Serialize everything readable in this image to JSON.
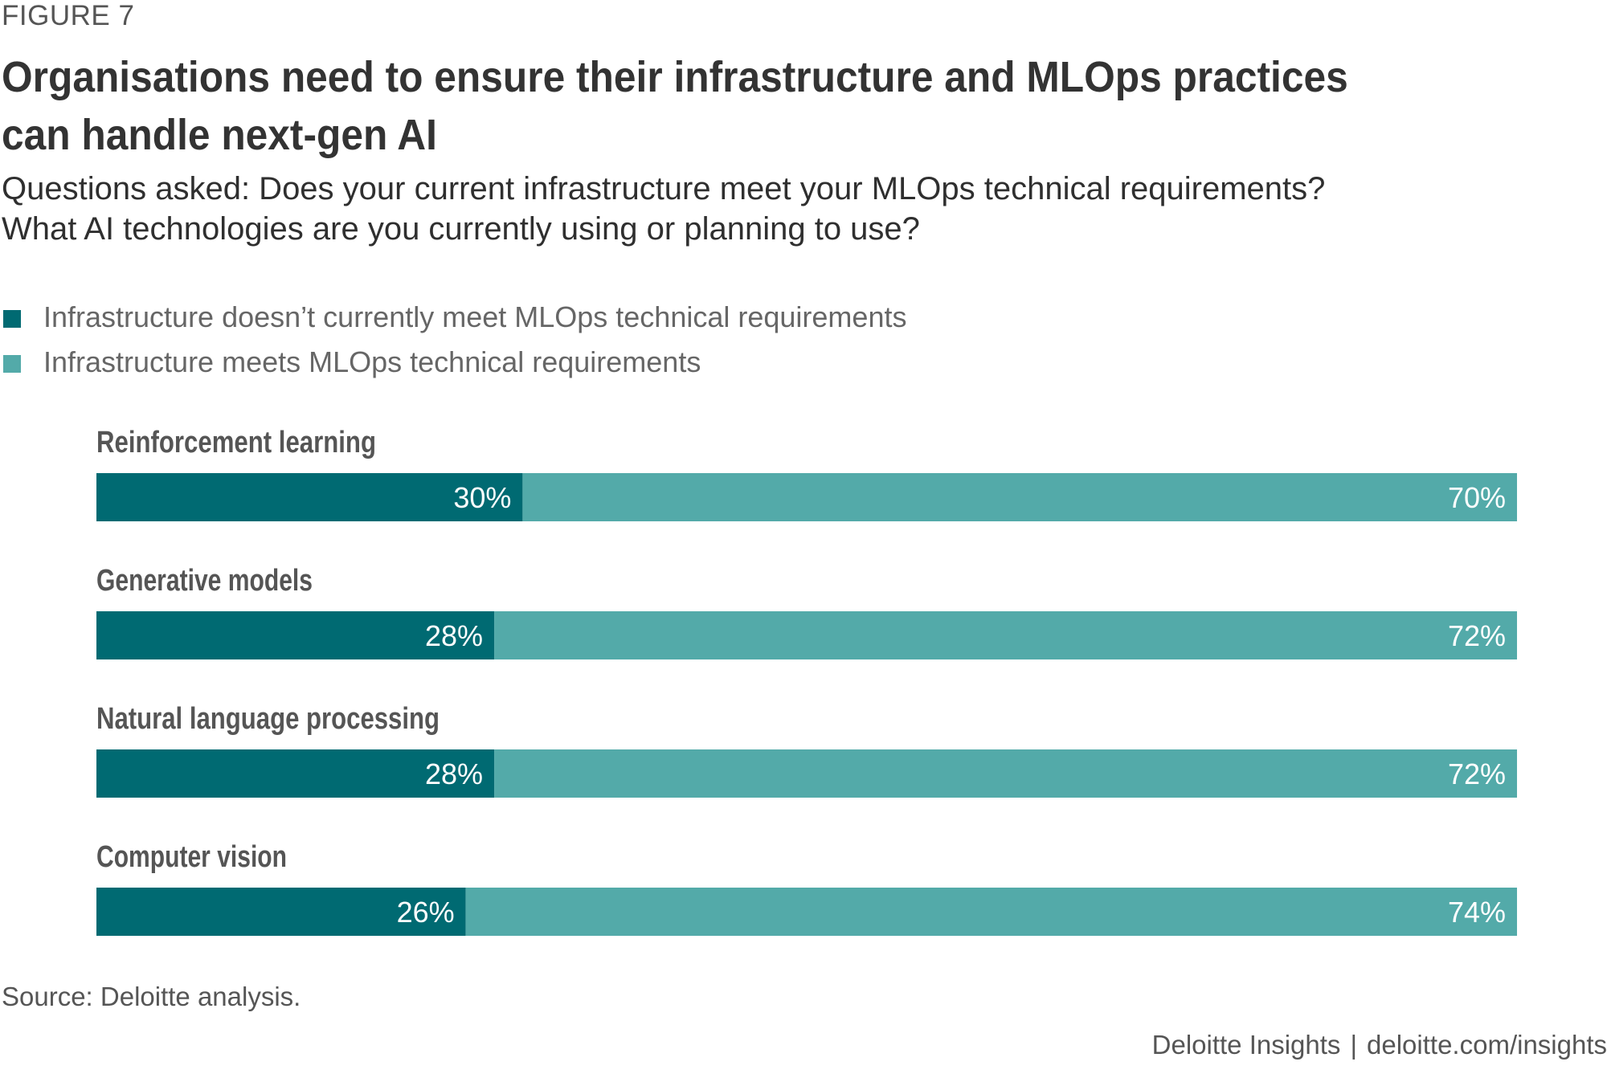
{
  "figure_label": "FIGURE 7",
  "title": "Organisations need to ensure their infrastructure and MLOps practices can handle next-gen AI",
  "subtitle_line1": "Questions asked: Does your current infrastructure meet your MLOps technical requirements?",
  "subtitle_line2": "What AI technologies are you currently using or planning to use?",
  "legend": [
    {
      "label": "Infrastructure doesn’t currently meet MLOps technical requirements",
      "color": "#006a72"
    },
    {
      "label": "Infrastructure meets MLOps technical requirements",
      "color": "#53aaa9"
    }
  ],
  "chart_data": {
    "type": "bar",
    "orientation": "horizontal",
    "stacked": true,
    "unit": "%",
    "categories": [
      "Reinforcement learning",
      "Generative models",
      "Natural language processing",
      "Computer vision"
    ],
    "series": [
      {
        "name": "Infrastructure doesn’t currently meet MLOps technical requirements",
        "values": [
          30,
          28,
          28,
          26
        ],
        "color": "#006a72"
      },
      {
        "name": "Infrastructure meets MLOps technical requirements",
        "values": [
          70,
          72,
          72,
          74
        ],
        "color": "#53aaa9"
      }
    ],
    "xlim": [
      0,
      100
    ],
    "legend_position": "top-left",
    "grid": false
  },
  "source": "Source: Deloitte analysis.",
  "footer": {
    "brand": "Deloitte Insights",
    "separator": "|",
    "url": "deloitte.com/insights"
  }
}
